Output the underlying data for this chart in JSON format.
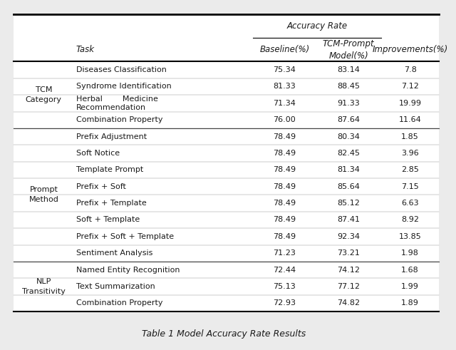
{
  "caption": "Table 1 Model Accuracy Rate Results",
  "row_groups": [
    {
      "group_label": "TCM\nCategory",
      "rows": [
        [
          "Diseases Classification",
          "75.34",
          "83.14",
          "7.8"
        ],
        [
          "Syndrome Identification",
          "81.33",
          "88.45",
          "7.12"
        ],
        [
          "Herbal        Medicine\nRecommendation",
          "71.34",
          "91.33",
          "19.99"
        ],
        [
          "Combination Property",
          "76.00",
          "87.64",
          "11.64"
        ]
      ]
    },
    {
      "group_label": "Prompt\nMethod",
      "rows": [
        [
          "Prefix Adjustment",
          "78.49",
          "80.34",
          "1.85"
        ],
        [
          "Soft Notice",
          "78.49",
          "82.45",
          "3.96"
        ],
        [
          "Template Prompt",
          "78.49",
          "81.34",
          "2.85"
        ],
        [
          "Prefix + Soft",
          "78.49",
          "85.64",
          "7.15"
        ],
        [
          "Prefix + Template",
          "78.49",
          "85.12",
          "6.63"
        ],
        [
          "Soft + Template",
          "78.49",
          "87.41",
          "8.92"
        ],
        [
          "Prefix + Soft + Template",
          "78.49",
          "92.34",
          "13.85"
        ],
        [
          "Sentiment Analysis",
          "71.23",
          "73.21",
          "1.98"
        ]
      ]
    },
    {
      "group_label": "NLP\nTransitivity",
      "rows": [
        [
          "Named Entity Recognition",
          "72.44",
          "74.12",
          "1.68"
        ],
        [
          "Text Summarization",
          "75.13",
          "77.12",
          "1.99"
        ],
        [
          "Combination Property",
          "72.93",
          "74.82",
          "1.89"
        ]
      ]
    }
  ],
  "bg_color": "#ebebeb",
  "table_bg": "#ffffff",
  "text_color": "#1a1a1a",
  "font_size": 8.5,
  "caption_font_size": 9
}
